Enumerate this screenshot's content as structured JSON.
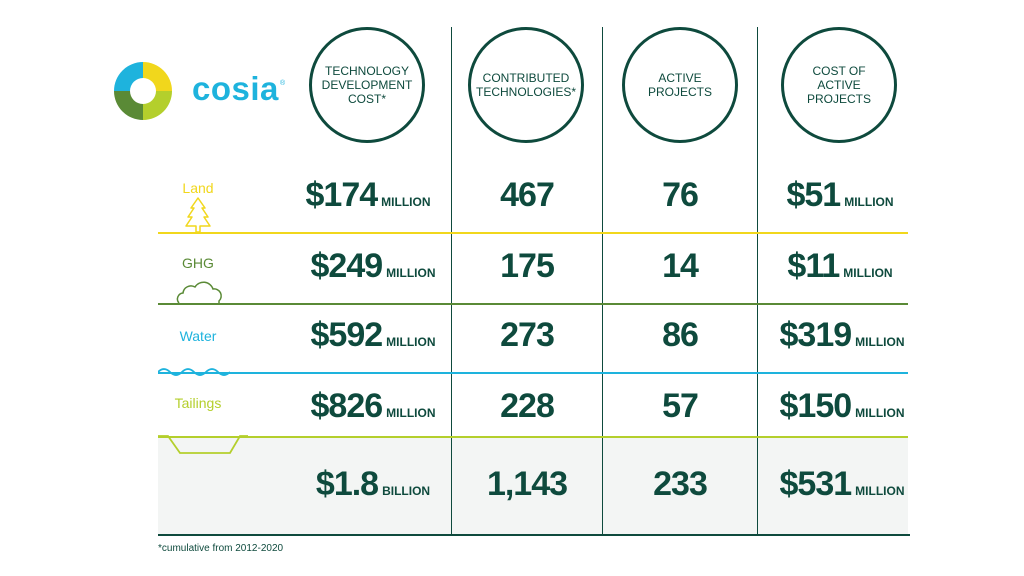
{
  "brand": {
    "name": "cosia",
    "mark": "®"
  },
  "headers": [
    "TECHNOLOGY DEVELOPMENT COST*",
    "CONTRIBUTED TECHNOLOGIES*",
    "ACTIVE PROJECTS",
    "COST OF ACTIVE PROJECTS"
  ],
  "rows": [
    {
      "category": "Land",
      "color": "#f1d71c",
      "values": [
        {
          "num": "$174",
          "unit": "MILLION"
        },
        {
          "num": "467",
          "unit": ""
        },
        {
          "num": "76",
          "unit": ""
        },
        {
          "num": "$51",
          "unit": "MILLION"
        }
      ]
    },
    {
      "category": "GHG",
      "color": "#5a8a36",
      "values": [
        {
          "num": "$249",
          "unit": "MILLION"
        },
        {
          "num": "175",
          "unit": ""
        },
        {
          "num": "14",
          "unit": ""
        },
        {
          "num": "$11",
          "unit": "MILLION"
        }
      ]
    },
    {
      "category": "Water",
      "color": "#1eb3dd",
      "values": [
        {
          "num": "$592",
          "unit": "MILLION"
        },
        {
          "num": "273",
          "unit": ""
        },
        {
          "num": "86",
          "unit": ""
        },
        {
          "num": "$319",
          "unit": "MILLION"
        }
      ]
    },
    {
      "category": "Tailings",
      "color": "#b4cf2c",
      "values": [
        {
          "num": "$826",
          "unit": "MILLION"
        },
        {
          "num": "228",
          "unit": ""
        },
        {
          "num": "57",
          "unit": ""
        },
        {
          "num": "$150",
          "unit": "MILLION"
        }
      ]
    }
  ],
  "totals": [
    {
      "num": "$1.8",
      "unit": "BILLION"
    },
    {
      "num": "1,143",
      "unit": ""
    },
    {
      "num": "233",
      "unit": ""
    },
    {
      "num": "$531",
      "unit": "MILLION"
    }
  ],
  "footnote": "*cumulative from 2012-2020",
  "colors": {
    "dark_green": "#0e4a3d",
    "yellow": "#f1d71c",
    "green": "#5a8a36",
    "blue": "#1eb3dd",
    "lime": "#b4cf2c",
    "total_bg": "#f3f5f4"
  }
}
